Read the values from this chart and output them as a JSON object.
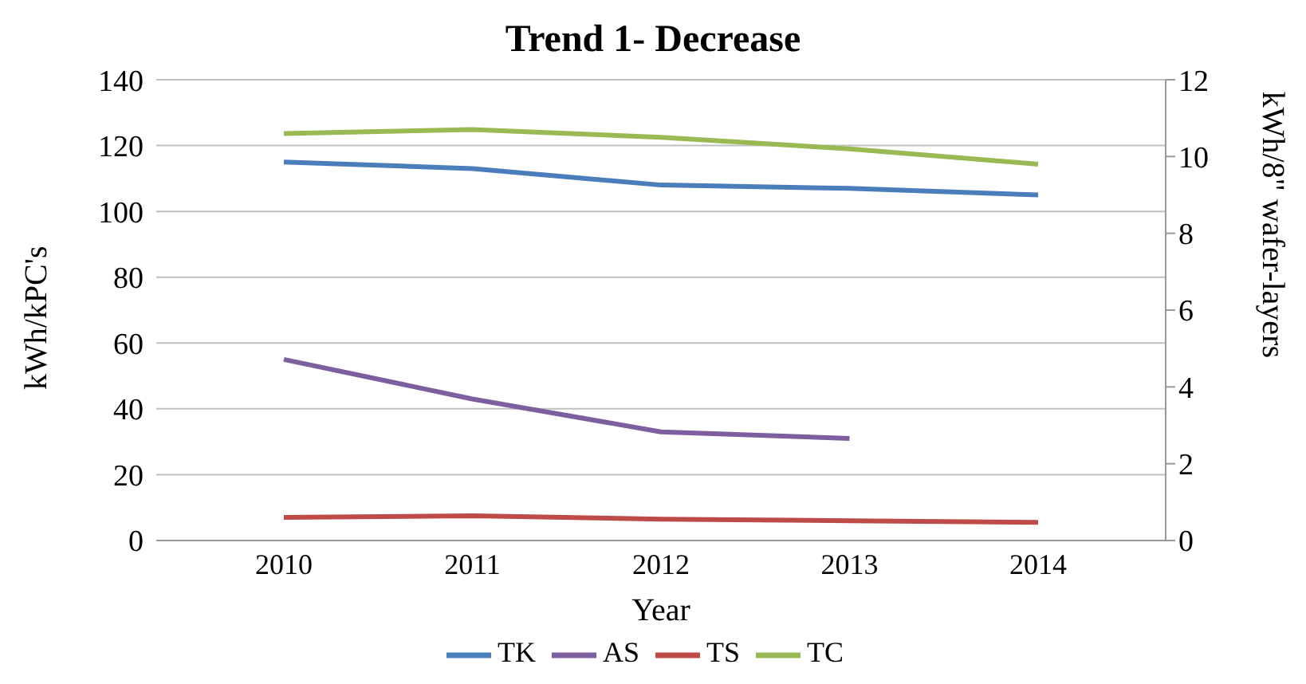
{
  "chart_data": {
    "type": "line",
    "title": "Trend 1- Decrease",
    "xlabel": "Year",
    "ylabel": "kWh/kPC's",
    "y2label": "kWh/8\" wafer-layers",
    "categories": [
      "2010",
      "2011",
      "2012",
      "2013",
      "2014"
    ],
    "series": [
      {
        "name": "TK",
        "color": "#4a7ebb",
        "values": [
          115,
          113,
          108,
          107,
          105
        ]
      },
      {
        "name": "AS",
        "color": "#7d5fa0",
        "values": [
          55,
          43,
          33,
          31,
          null
        ]
      },
      {
        "name": "TS",
        "color": "#be4b48",
        "values": [
          7,
          7.5,
          6.5,
          6,
          5.5
        ]
      },
      {
        "name": "TC",
        "color": "#98b954",
        "axis": "y2",
        "values": [
          10.6,
          10.7,
          10.5,
          10.2,
          9.8
        ]
      }
    ],
    "ylim": [
      0,
      140
    ],
    "yticks": [
      0,
      20,
      40,
      60,
      80,
      100,
      120,
      140
    ],
    "y2lim": [
      0,
      12
    ],
    "y2ticks": [
      0,
      2,
      4,
      6,
      8,
      10,
      12
    ],
    "grid": "y",
    "legend": "bottom",
    "marker": "none",
    "line_style": "solid"
  }
}
